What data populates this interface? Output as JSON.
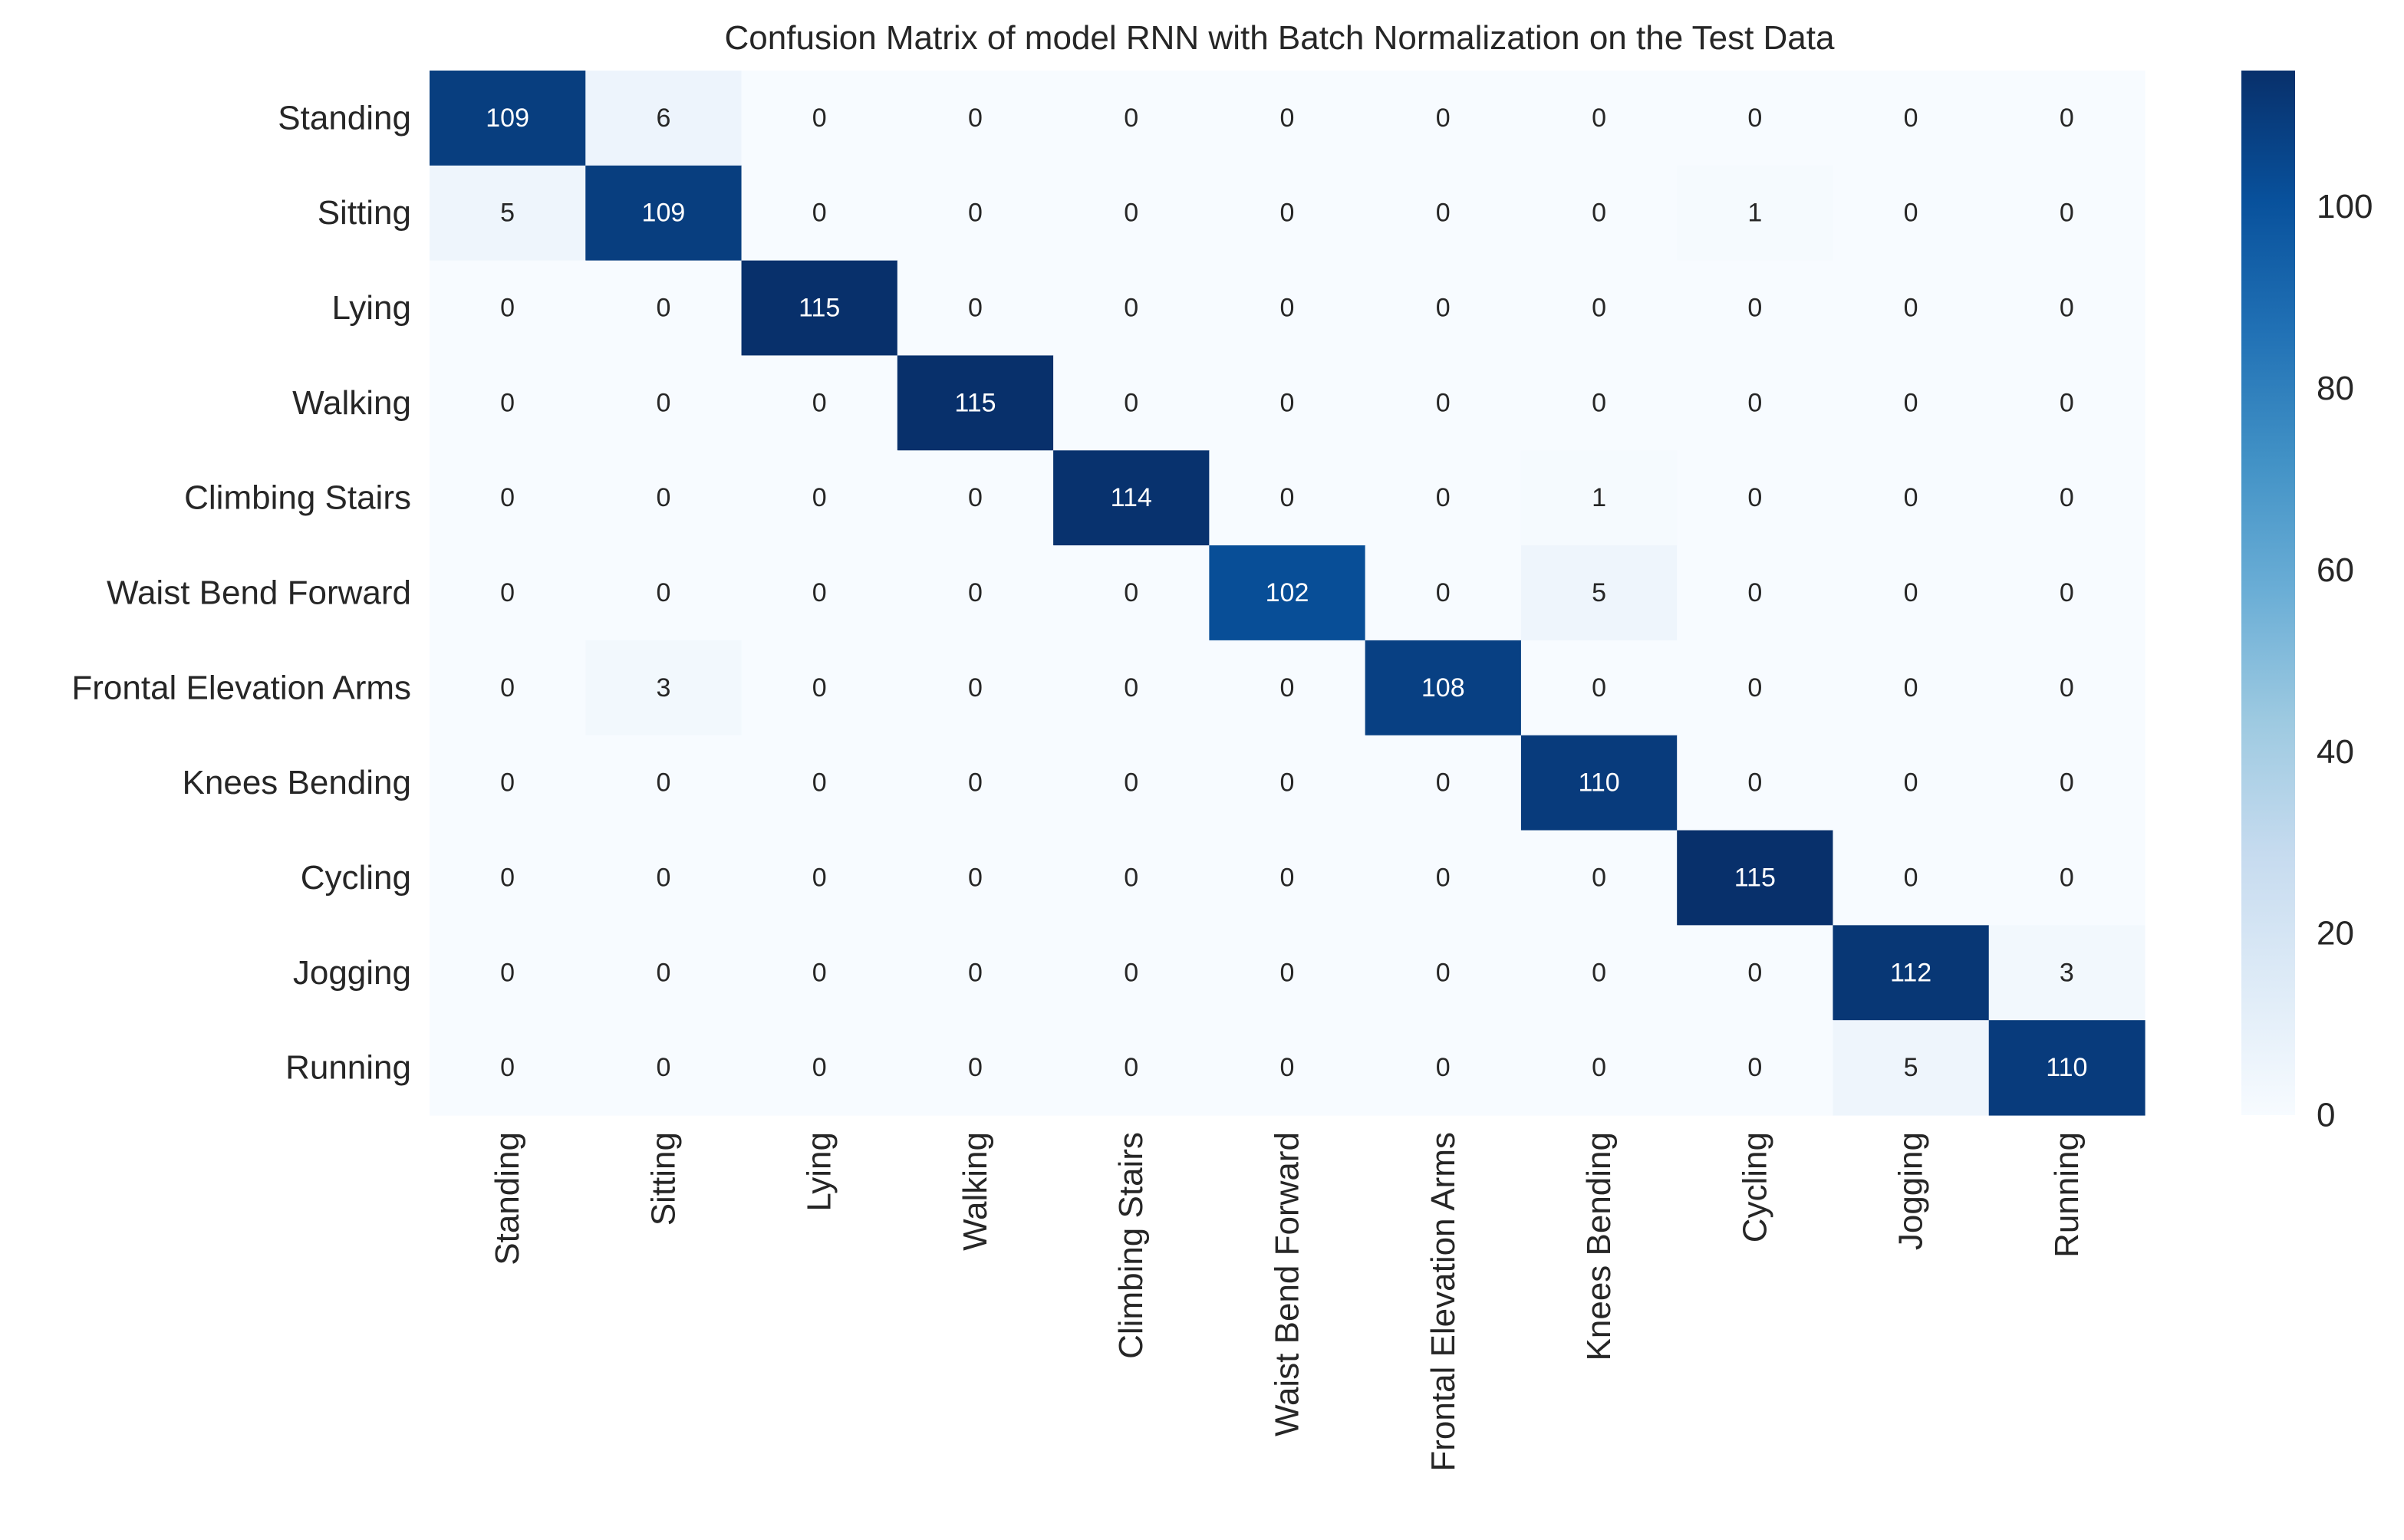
{
  "chart_data": {
    "type": "heatmap",
    "title": "Confusion Matrix of model RNN with Batch Normalization on the Test Data",
    "xlabel": "",
    "ylabel": "",
    "row_labels": [
      "Standing",
      "Sitting",
      "Lying",
      "Walking",
      "Climbing Stairs",
      "Waist Bend Forward",
      "Frontal Elevation Arms",
      "Knees Bending",
      "Cycling",
      "Jogging",
      "Running"
    ],
    "col_labels": [
      "Standing",
      "Sitting",
      "Lying",
      "Walking",
      "Climbing Stairs",
      "Waist Bend Forward",
      "Frontal Elevation Arms",
      "Knees Bending",
      "Cycling",
      "Jogging",
      "Running"
    ],
    "values": [
      [
        109,
        6,
        0,
        0,
        0,
        0,
        0,
        0,
        0,
        0,
        0
      ],
      [
        5,
        109,
        0,
        0,
        0,
        0,
        0,
        0,
        1,
        0,
        0
      ],
      [
        0,
        0,
        115,
        0,
        0,
        0,
        0,
        0,
        0,
        0,
        0
      ],
      [
        0,
        0,
        0,
        115,
        0,
        0,
        0,
        0,
        0,
        0,
        0
      ],
      [
        0,
        0,
        0,
        0,
        114,
        0,
        0,
        1,
        0,
        0,
        0
      ],
      [
        0,
        0,
        0,
        0,
        0,
        102,
        0,
        5,
        0,
        0,
        0
      ],
      [
        0,
        3,
        0,
        0,
        0,
        0,
        108,
        0,
        0,
        0,
        0
      ],
      [
        0,
        0,
        0,
        0,
        0,
        0,
        0,
        110,
        0,
        0,
        0
      ],
      [
        0,
        0,
        0,
        0,
        0,
        0,
        0,
        0,
        115,
        0,
        0
      ],
      [
        0,
        0,
        0,
        0,
        0,
        0,
        0,
        0,
        0,
        112,
        3
      ],
      [
        0,
        0,
        0,
        0,
        0,
        0,
        0,
        0,
        0,
        5,
        110
      ]
    ],
    "colormap": "Blues",
    "vmin": 0,
    "vmax": 115,
    "colorbar": {
      "ticks": [
        0,
        20,
        40,
        60,
        80,
        100
      ],
      "placement": "right"
    },
    "annotated": true,
    "grid": false
  }
}
